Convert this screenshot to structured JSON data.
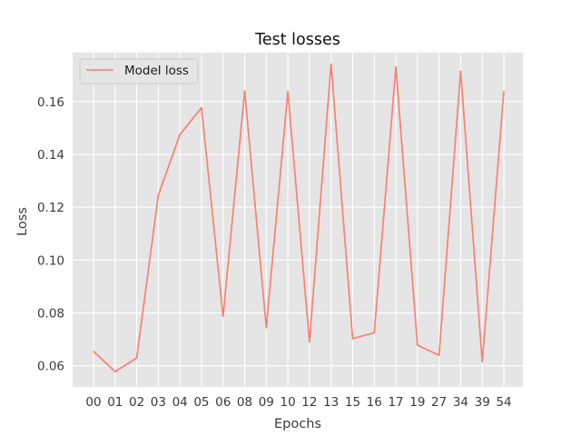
{
  "chart_data": {
    "type": "line",
    "title": "Test losses",
    "xlabel": "Epochs",
    "ylabel": "Loss",
    "categories": [
      "00",
      "01",
      "02",
      "03",
      "04",
      "05",
      "06",
      "08",
      "09",
      "10",
      "12",
      "13",
      "15",
      "16",
      "17",
      "19",
      "27",
      "34",
      "39",
      "54"
    ],
    "series": [
      {
        "name": "Model loss",
        "values": [
          0.0655,
          0.0578,
          0.063,
          0.1245,
          0.1475,
          0.1577,
          0.0787,
          0.164,
          0.0745,
          0.1638,
          0.069,
          0.1742,
          0.0703,
          0.0725,
          0.1731,
          0.0678,
          0.064,
          0.1715,
          0.0615,
          0.164
        ]
      }
    ],
    "ylim": [
      0.052,
      0.1785
    ],
    "yticks": [
      0.06,
      0.08,
      0.1,
      0.12,
      0.14,
      0.16
    ],
    "ytick_labels": [
      "0.06",
      "0.08",
      "0.10",
      "0.12",
      "0.14",
      "0.16"
    ],
    "grid": true,
    "legend": "upper-left",
    "colors": {
      "line": "#fa8072",
      "plot_background": "#e5e5e5",
      "grid": "#ffffff"
    }
  }
}
